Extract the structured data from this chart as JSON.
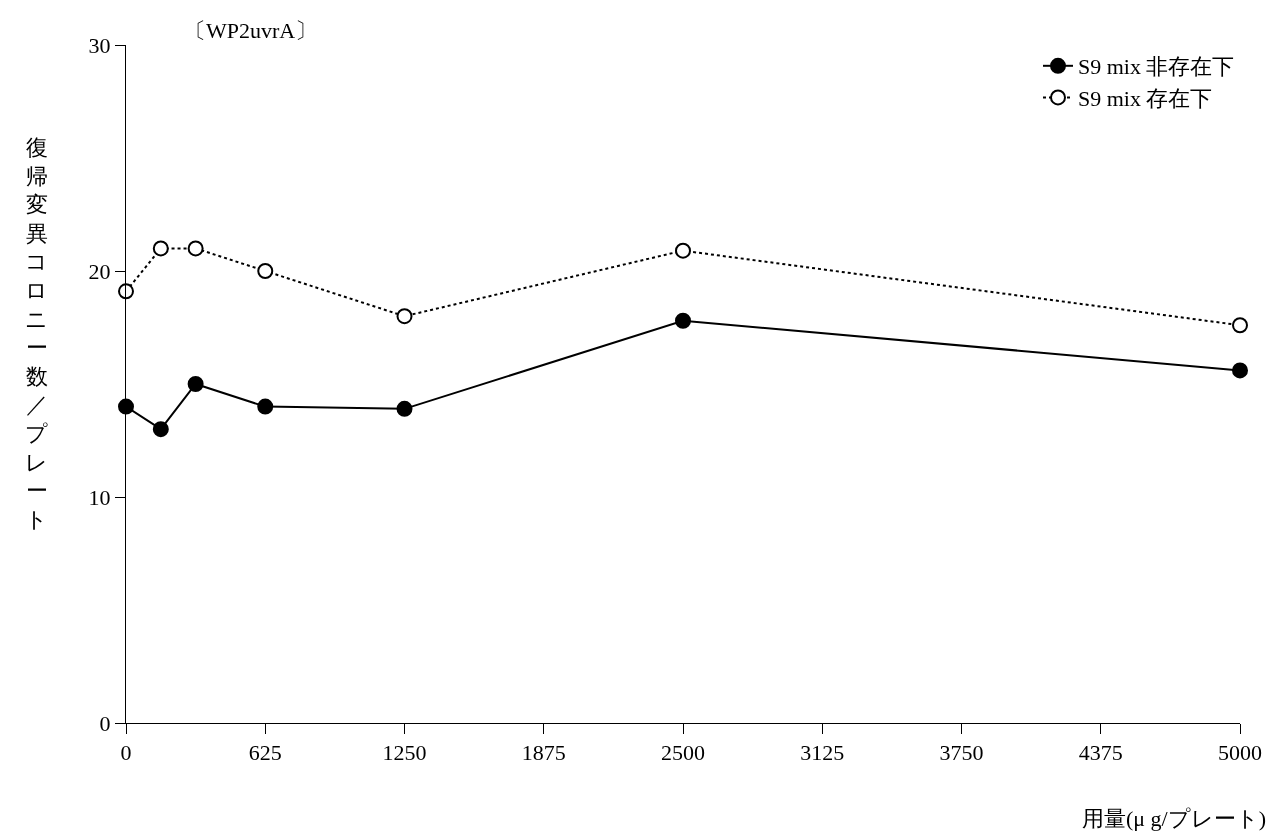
{
  "chart_data": {
    "type": "line",
    "title": "〔WP2uvrA〕",
    "xlabel": "用量(μ g/プレート)",
    "ylabel": "復帰変異コロニー数／プレート",
    "x": [
      0,
      156.25,
      312.5,
      625,
      1250,
      2500,
      5000
    ],
    "series": [
      {
        "name": "S9 mix 非存在下",
        "color": "#000000",
        "line_style": "solid",
        "values": [
          14,
          13,
          15,
          14,
          13.9,
          17.8,
          15.6
        ]
      },
      {
        "name": "S9 mix 存在下",
        "color": "#000000",
        "line_style": "dotted",
        "values": [
          19.1,
          21,
          21,
          20,
          18,
          20.9,
          17.6
        ]
      }
    ],
    "xlim": [
      0,
      5000
    ],
    "xticks": [
      0,
      625,
      1250,
      1875,
      2500,
      3125,
      3750,
      4375,
      5000
    ],
    "ylim": [
      0,
      30
    ],
    "yticks": [
      0,
      10,
      20,
      30
    ],
    "grid": false,
    "legend": "top right",
    "marker": "circle"
  }
}
